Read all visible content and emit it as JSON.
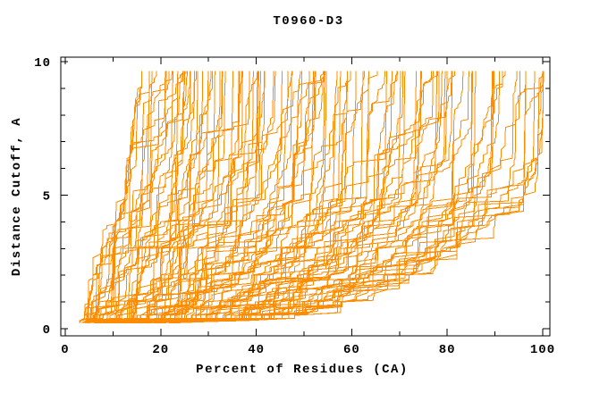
{
  "figure": {
    "background": "#ffffff"
  },
  "chart_data": {
    "type": "line",
    "title": "T0960-D3",
    "xlabel": "Percent of Residues (CA)",
    "ylabel": "Distance Cutoff, A",
    "xlim": [
      0,
      100
    ],
    "ylim": [
      0,
      10
    ],
    "xticks_major": [
      0,
      20,
      40,
      60,
      80,
      100
    ],
    "xticks_minor": [
      10,
      30,
      50,
      70,
      90
    ],
    "yticks_major": [
      0,
      5,
      10
    ],
    "yticks_minor": [
      1,
      2,
      3,
      4,
      6,
      7,
      8,
      9
    ],
    "grid": false,
    "legend": null,
    "line_color": "#ff8c00",
    "axis_color": "#000000",
    "text_color": "#000000",
    "description": "GDT-style plot: one monotonically increasing stepped curve per predicted model; percent of CA residues fitting under each distance cutoff. Roughly 120 overlapping orange curves spanning from the left envelope (worst model) to the right envelope (best model).",
    "series_family": {
      "n_curves": 120,
      "seed": 11,
      "cutoff_start": 0.22,
      "cutoff_end": 9.65,
      "anchor_cutoffs": [
        0.25,
        0.5,
        1,
        2,
        3,
        4,
        5,
        6.5,
        8,
        9.65
      ],
      "envelope_left_percent": [
        3,
        4,
        4.8,
        5.8,
        7.5,
        10.5,
        12.5,
        13.5,
        14.5,
        16
      ],
      "envelope_right_percent": [
        38,
        48,
        58,
        72,
        82,
        90,
        96,
        99,
        100,
        100
      ]
    }
  }
}
